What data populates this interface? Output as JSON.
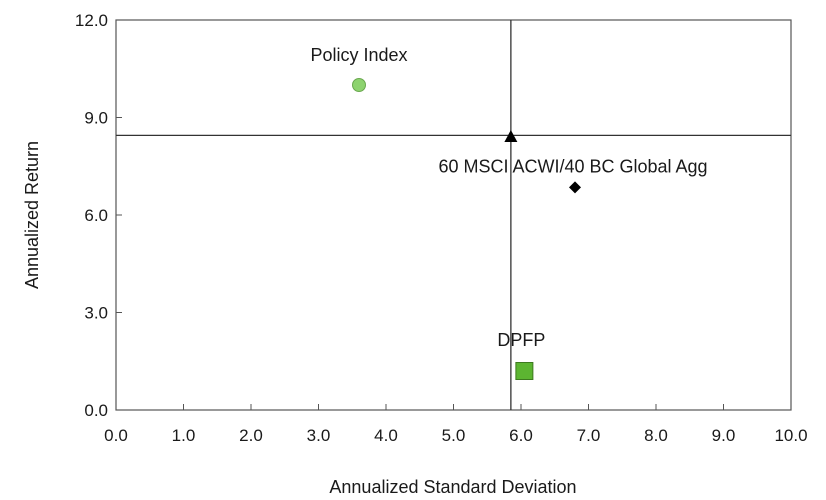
{
  "chart_data": {
    "type": "scatter",
    "xlabel": "Annualized Standard Deviation",
    "ylabel": "Annualized Return",
    "xlim": [
      0,
      10
    ],
    "ylim": [
      0,
      12
    ],
    "x_ticks": [
      "0.0",
      "1.0",
      "2.0",
      "3.0",
      "4.0",
      "5.0",
      "6.0",
      "7.0",
      "8.0",
      "9.0",
      "10.0"
    ],
    "y_ticks": [
      "0.0",
      "3.0",
      "6.0",
      "9.0",
      "12.0"
    ],
    "grid": false,
    "reference_lines": {
      "x": 5.85,
      "y": 8.45
    },
    "points": [
      {
        "label": "Policy Index",
        "x": 3.6,
        "y": 10.0,
        "marker": "circle",
        "color": "#8dd36f"
      },
      {
        "label": "",
        "x": 5.85,
        "y": 8.4,
        "marker": "triangle",
        "color": "#000000"
      },
      {
        "label": "60 MSCI ACWI/40 BC Global Agg",
        "x": 6.8,
        "y": 6.85,
        "marker": "diamond",
        "color": "#000000"
      },
      {
        "label": "DPFP",
        "x": 6.05,
        "y": 1.2,
        "marker": "square",
        "color": "#5cb531"
      }
    ]
  }
}
